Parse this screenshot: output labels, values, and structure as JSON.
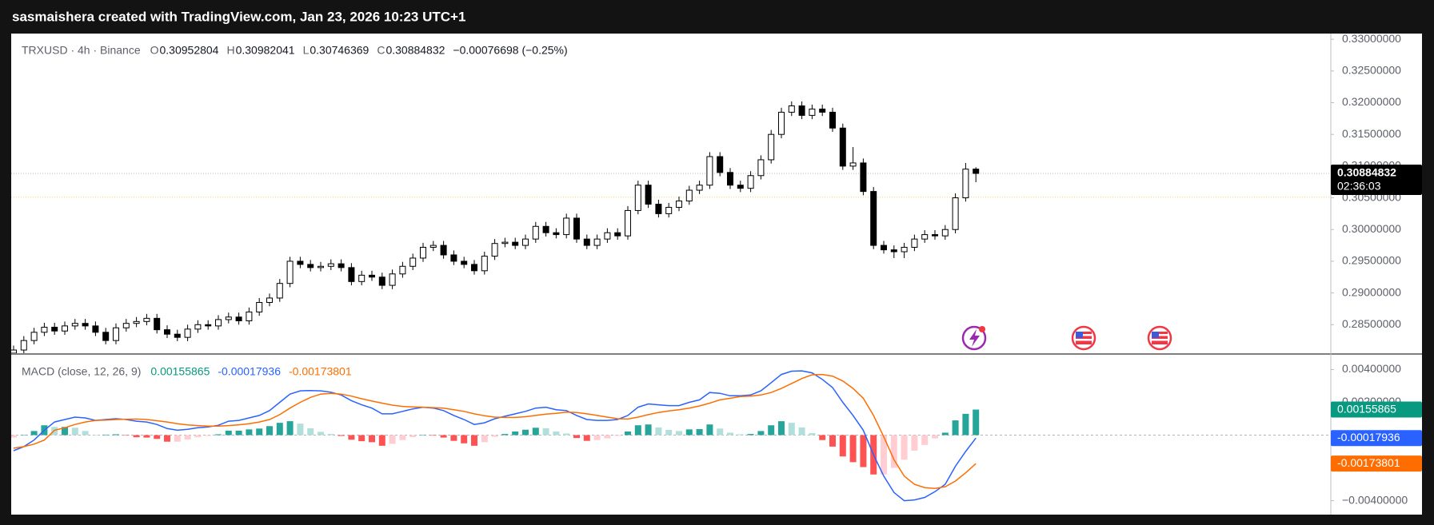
{
  "header": "sasmaishera created with TradingView.com, Jan 23, 2026 10:23 UTC+1",
  "chart_data": [
    {
      "type": "candlestick",
      "title": "TRXUSD · 4h · Binance",
      "ohlc_keys": [
        "O",
        "H",
        "L",
        "C"
      ],
      "change": "−0.00076698 (−0.25%)",
      "countdown": "02:36:03",
      "up_color": "#ffffff",
      "down_color": "#000000",
      "wick_color": "#000000",
      "price_line": 0.3051,
      "ylim": [
        0.2805,
        0.3309
      ],
      "yticks": [
        {
          "value": 0.285,
          "label": "0.28500000"
        },
        {
          "value": 0.29,
          "label": "0.29000000"
        },
        {
          "value": 0.295,
          "label": "0.29500000"
        },
        {
          "value": 0.3,
          "label": "0.30000000"
        },
        {
          "value": 0.305,
          "label": "0.30500000"
        },
        {
          "value": 0.31,
          "label": "0.31000000"
        },
        {
          "value": 0.315,
          "label": "0.31500000"
        },
        {
          "value": 0.32,
          "label": "0.32000000"
        },
        {
          "value": 0.325,
          "label": "0.32500000"
        },
        {
          "value": 0.33,
          "label": "0.33000000"
        }
      ],
      "open": [
        0.2805,
        0.281,
        0.2825,
        0.2838,
        0.2846,
        0.284,
        0.2848,
        0.2852,
        0.2848,
        0.2838,
        0.2825,
        0.2845,
        0.2852,
        0.2855,
        0.286,
        0.2842,
        0.2835,
        0.283,
        0.2843,
        0.285,
        0.2848,
        0.2858,
        0.2862,
        0.2856,
        0.287,
        0.2885,
        0.2892,
        0.2915,
        0.295,
        0.2945,
        0.294,
        0.2942,
        0.2946,
        0.294,
        0.2918,
        0.2928,
        0.2925,
        0.2912,
        0.293,
        0.2942,
        0.2955,
        0.2972,
        0.2975,
        0.296,
        0.295,
        0.2945,
        0.2935,
        0.2958,
        0.2978,
        0.298,
        0.2975,
        0.2985,
        0.3005,
        0.2995,
        0.2992,
        0.3018,
        0.2985,
        0.2975,
        0.2985,
        0.2995,
        0.299,
        0.303,
        0.307,
        0.304,
        0.3025,
        0.3035,
        0.3045,
        0.3062,
        0.307,
        0.3115,
        0.309,
        0.307,
        0.3065,
        0.3085,
        0.311,
        0.315,
        0.3185,
        0.3195,
        0.318,
        0.319,
        0.3185,
        0.316,
        0.31,
        0.3105,
        0.306,
        0.2975,
        0.2968,
        0.2965,
        0.2972,
        0.2985,
        0.2992,
        0.299,
        0.3,
        0.305,
        0.30952804
      ],
      "high": [
        0.2817,
        0.2832,
        0.2845,
        0.2853,
        0.2853,
        0.2855,
        0.2859,
        0.2859,
        0.2855,
        0.2845,
        0.2852,
        0.2859,
        0.2862,
        0.2867,
        0.2867,
        0.2849,
        0.2842,
        0.285,
        0.2857,
        0.2857,
        0.2865,
        0.2869,
        0.2869,
        0.2877,
        0.2892,
        0.2899,
        0.2922,
        0.2957,
        0.2957,
        0.2952,
        0.2949,
        0.2953,
        0.2953,
        0.2947,
        0.2935,
        0.2935,
        0.2932,
        0.2937,
        0.2949,
        0.2962,
        0.2979,
        0.2982,
        0.2982,
        0.2967,
        0.2957,
        0.2952,
        0.2965,
        0.2985,
        0.2987,
        0.2987,
        0.2992,
        0.3012,
        0.3012,
        0.3002,
        0.3025,
        0.3025,
        0.2992,
        0.2992,
        0.3002,
        0.3002,
        0.3037,
        0.3077,
        0.3077,
        0.3047,
        0.3042,
        0.3052,
        0.3069,
        0.3077,
        0.3122,
        0.3122,
        0.3097,
        0.3077,
        0.3092,
        0.3117,
        0.3157,
        0.3192,
        0.3202,
        0.3202,
        0.3197,
        0.3197,
        0.3192,
        0.3167,
        0.313,
        0.3112,
        0.3067,
        0.2982,
        0.2975,
        0.2979,
        0.2992,
        0.2999,
        0.2999,
        0.3007,
        0.3057,
        0.3105,
        0.30982041
      ],
      "low": [
        0.2799,
        0.2804,
        0.2819,
        0.2832,
        0.2834,
        0.2834,
        0.2842,
        0.2842,
        0.2832,
        0.2819,
        0.2819,
        0.2839,
        0.2846,
        0.2849,
        0.2836,
        0.2829,
        0.2824,
        0.2824,
        0.2837,
        0.2842,
        0.2842,
        0.2852,
        0.285,
        0.285,
        0.2864,
        0.2879,
        0.2886,
        0.2909,
        0.2939,
        0.2934,
        0.2934,
        0.2936,
        0.2934,
        0.2912,
        0.2912,
        0.2919,
        0.2906,
        0.2906,
        0.2924,
        0.2936,
        0.2949,
        0.2966,
        0.2954,
        0.2944,
        0.2939,
        0.2929,
        0.2929,
        0.2952,
        0.2972,
        0.2969,
        0.2969,
        0.2979,
        0.2989,
        0.2986,
        0.2986,
        0.2979,
        0.2969,
        0.2969,
        0.2979,
        0.2984,
        0.2984,
        0.3024,
        0.3034,
        0.3019,
        0.3019,
        0.3029,
        0.3039,
        0.3056,
        0.3064,
        0.3084,
        0.3064,
        0.3059,
        0.3059,
        0.3079,
        0.3104,
        0.3144,
        0.3179,
        0.3174,
        0.3174,
        0.3179,
        0.3154,
        0.3094,
        0.3094,
        0.3054,
        0.2969,
        0.2962,
        0.2955,
        0.2955,
        0.2966,
        0.2979,
        0.2984,
        0.2984,
        0.2994,
        0.3044,
        0.30746369
      ],
      "close": [
        0.281,
        0.2825,
        0.2838,
        0.2846,
        0.284,
        0.2848,
        0.2852,
        0.2848,
        0.2838,
        0.2825,
        0.2845,
        0.2852,
        0.2855,
        0.286,
        0.2842,
        0.2835,
        0.283,
        0.2843,
        0.285,
        0.2848,
        0.2858,
        0.2862,
        0.2856,
        0.287,
        0.2885,
        0.2892,
        0.2915,
        0.295,
        0.2945,
        0.294,
        0.2942,
        0.2946,
        0.294,
        0.2918,
        0.2928,
        0.2925,
        0.2912,
        0.293,
        0.2942,
        0.2955,
        0.2972,
        0.2975,
        0.296,
        0.295,
        0.2945,
        0.2935,
        0.2958,
        0.2978,
        0.298,
        0.2975,
        0.2985,
        0.3005,
        0.2995,
        0.2992,
        0.3018,
        0.2985,
        0.2975,
        0.2985,
        0.2995,
        0.299,
        0.303,
        0.307,
        0.304,
        0.3025,
        0.3035,
        0.3045,
        0.3062,
        0.307,
        0.3115,
        0.309,
        0.307,
        0.3065,
        0.3085,
        0.311,
        0.315,
        0.3185,
        0.3195,
        0.318,
        0.319,
        0.3185,
        0.316,
        0.31,
        0.3105,
        0.306,
        0.2975,
        0.2968,
        0.2965,
        0.2972,
        0.2985,
        0.2992,
        0.299,
        0.3,
        0.305,
        0.30952804,
        0.30884832
      ]
    },
    {
      "type": "macd",
      "title": "MACD (close, 12, 26, 9)",
      "ylim": [
        -0.0048,
        0.0049
      ],
      "yticks": [
        {
          "value": -0.004,
          "label": "−0.00400000"
        },
        {
          "value": 0.002,
          "label": "0.00200000"
        },
        {
          "value": 0.004,
          "label": "0.00400000"
        }
      ],
      "hist_colors": [
        "#26a69a",
        "#b2dfdb",
        "#ffcdd2",
        "#ff5252"
      ],
      "series": [
        {
          "style": "histogram",
          "color": "#089981",
          "values": [
            -0.00015,
            0,
            0.00025,
            0.0006,
            0.0005,
            0.0005,
            0.00045,
            0.00025,
            0,
            3e-05,
            5e-05,
            -2e-05,
            -0.00013,
            -0.00015,
            -0.00023,
            -0.0004,
            -0.0004,
            -0.00027,
            -0.00013,
            -5e-05,
            5e-05,
            0.00027,
            0.00027,
            0.00035,
            0.0004,
            0.00055,
            0.00075,
            0.00085,
            0.0007,
            0.00042,
            0.0002,
            7e-05,
            -5e-05,
            -0.00028,
            -0.00037,
            -0.00043,
            -0.00065,
            -0.00053,
            -0.0003,
            -0.00012,
            0,
            -3e-05,
            -0.00015,
            -0.00035,
            -0.0005,
            -0.00065,
            -0.00043,
            -0.0001,
            7e-05,
            0.00022,
            0.00033,
            0.00045,
            0.00042,
            0.00022,
            0.0001,
            -0.00018,
            -0.00035,
            -0.0003,
            -0.0002,
            -5e-05,
            0.00022,
            0.0006,
            0.00065,
            0.00047,
            0.00032,
            0.00025,
            0.00035,
            0.00037,
            0.00065,
            0.0004,
            0.00015,
            5e-05,
            7e-05,
            0.00025,
            0.0006,
            0.00085,
            0.00075,
            0.00047,
            0.00012,
            -0.0003,
            -0.0007,
            -0.0013,
            -0.00165,
            -0.00195,
            -0.0024,
            -0.0024,
            -0.002,
            -0.0015,
            -0.00095,
            -0.0006,
            -0.0002,
            0.00015,
            0.0009,
            0.0013,
            0.00155865
          ]
        },
        {
          "style": "line",
          "color": "#2962ff",
          "values": [
            -0.00095,
            -0.0007,
            -0.0003,
            0.0003,
            0.0008,
            0.00095,
            0.0011,
            0.00105,
            0.0009,
            0.00095,
            0.001,
            0.00095,
            0.00085,
            0.0008,
            0.00065,
            0.0004,
            0.0003,
            0.00035,
            0.00045,
            0.0005,
            0.0006,
            0.00085,
            0.0009,
            0.00105,
            0.0012,
            0.0015,
            0.002,
            0.0025,
            0.0027,
            0.00272,
            0.0027,
            0.00262,
            0.00245,
            0.0021,
            0.00185,
            0.00165,
            0.0013,
            0.0013,
            0.00145,
            0.0016,
            0.0017,
            0.00165,
            0.0015,
            0.0012,
            0.00095,
            0.00065,
            0.00075,
            0.001,
            0.00115,
            0.0013,
            0.00145,
            0.00165,
            0.0017,
            0.00155,
            0.0015,
            0.0012,
            0.00095,
            0.0009,
            0.0009,
            0.00095,
            0.0012,
            0.0017,
            0.0019,
            0.00185,
            0.0018,
            0.0018,
            0.002,
            0.00215,
            0.0026,
            0.00255,
            0.0024,
            0.0024,
            0.00245,
            0.0027,
            0.0032,
            0.0037,
            0.0039,
            0.00392,
            0.0038,
            0.0034,
            0.0029,
            0.002,
            0.0012,
            0.0003,
            -0.0012,
            -0.0025,
            -0.0035,
            -0.004,
            -0.00395,
            -0.0038,
            -0.00345,
            -0.003,
            -0.0019,
            -0.001,
            -0.00017936
          ]
        },
        {
          "style": "line",
          "color": "#ff6d00",
          "values": [
            -0.0008,
            -0.0007,
            -0.00055,
            -0.0003,
            0.0003,
            0.00045,
            0.00065,
            0.0008,
            0.0009,
            0.00092,
            0.00095,
            0.00097,
            0.00098,
            0.00095,
            0.00088,
            0.0008,
            0.0007,
            0.00062,
            0.00058,
            0.00055,
            0.00055,
            0.00058,
            0.00063,
            0.0007,
            0.0008,
            0.00095,
            0.00125,
            0.00165,
            0.002,
            0.0023,
            0.0025,
            0.00255,
            0.0025,
            0.00238,
            0.00222,
            0.00208,
            0.00195,
            0.00183,
            0.00175,
            0.00172,
            0.0017,
            0.00168,
            0.00165,
            0.00155,
            0.00145,
            0.0013,
            0.00118,
            0.0011,
            0.00108,
            0.00108,
            0.00112,
            0.0012,
            0.00128,
            0.00133,
            0.0014,
            0.00138,
            0.0013,
            0.0012,
            0.0011,
            0.001,
            0.00098,
            0.0011,
            0.00125,
            0.00138,
            0.00148,
            0.00155,
            0.00165,
            0.00178,
            0.00195,
            0.00215,
            0.00225,
            0.00235,
            0.00238,
            0.00245,
            0.0026,
            0.00285,
            0.00315,
            0.00345,
            0.00368,
            0.0037,
            0.0036,
            0.0033,
            0.00285,
            0.00225,
            0.0012,
            -0.0001,
            -0.0015,
            -0.0025,
            -0.003,
            -0.0032,
            -0.00325,
            -0.00315,
            -0.0028,
            -0.0023,
            -0.00173801
          ]
        }
      ]
    }
  ]
}
